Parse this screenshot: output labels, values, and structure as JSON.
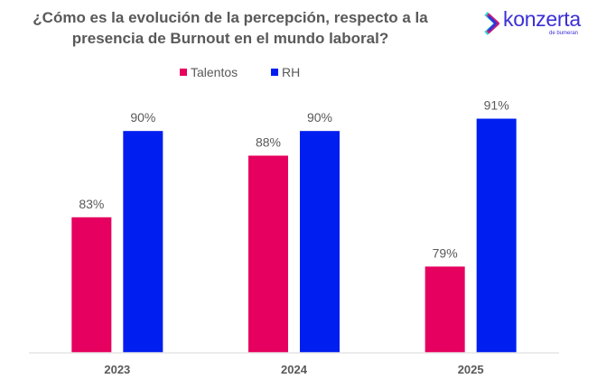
{
  "title_line1": "¿Cómo es la evolución de la percepción, respecto a la",
  "title_line2": "presencia de Burnout en el mundo laboral?",
  "logo": {
    "name": "konzerta",
    "sub": "de bumeran"
  },
  "chart_data": {
    "type": "bar",
    "title": "¿Cómo es la evolución de la percepción, respecto a la presencia de Burnout en el mundo laboral?",
    "categories": [
      "2023",
      "2024",
      "2025"
    ],
    "series": [
      {
        "name": "Talentos",
        "color": "#e6005f",
        "values": [
          83,
          88,
          79
        ],
        "labels": [
          "83%",
          "88%",
          "79%"
        ]
      },
      {
        "name": "RH",
        "color": "#001ef0",
        "values": [
          90,
          90,
          91
        ],
        "labels": [
          "90%",
          "90%",
          "91%"
        ]
      }
    ],
    "xlabel": "",
    "ylabel": "",
    "ylim": [
      72,
      100
    ],
    "grid": false,
    "legend": "top-center",
    "axis_color": "#e6e6e6"
  }
}
